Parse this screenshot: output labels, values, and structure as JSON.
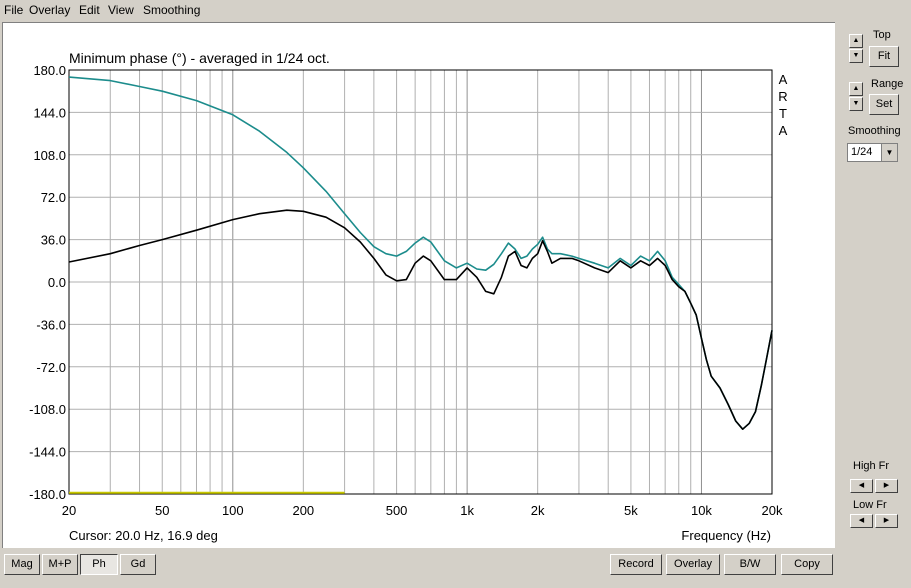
{
  "menu": [
    "File",
    "Overlay",
    "Edit",
    "View",
    "Smoothing"
  ],
  "right_panel": {
    "top_label": "Top",
    "fit_label": "Fit",
    "range_label": "Range",
    "set_label": "Set",
    "smoothing_label": "Smoothing",
    "smoothing_value": "1/24",
    "high_fr_label": "High Fr",
    "low_fr_label": "Low Fr"
  },
  "bottom_buttons": {
    "mag": "Mag",
    "mp": "M+P",
    "ph": "Ph",
    "gd": "Gd",
    "record": "Record",
    "overlay": "Overlay",
    "bw": "B/W",
    "copy": "Copy"
  },
  "colors": {
    "teal": "#1c8c8c",
    "black": "#000000",
    "yellow": "#c8c800",
    "grid": "#b0b0b0"
  },
  "chart_data": {
    "type": "line",
    "title": "Minimum phase (°) - averaged in 1/24 oct.",
    "xlabel": "Frequency (Hz)",
    "ylabel": "",
    "xscale": "log",
    "xlim": [
      20,
      20000
    ],
    "ylim": [
      -180,
      180
    ],
    "yticks": [
      "180.0",
      "144.0",
      "108.0",
      "72.0",
      "36.0",
      "0.0",
      "-36.0",
      "-72.0",
      "-108.0",
      "-144.0",
      "-180.0"
    ],
    "xticks": [
      {
        "v": 20,
        "label": "20"
      },
      {
        "v": 50,
        "label": "50"
      },
      {
        "v": 100,
        "label": "100"
      },
      {
        "v": 200,
        "label": "200"
      },
      {
        "v": 500,
        "label": "500"
      },
      {
        "v": 1000,
        "label": "1k"
      },
      {
        "v": 2000,
        "label": "2k"
      },
      {
        "v": 5000,
        "label": "5k"
      },
      {
        "v": 10000,
        "label": "10k"
      },
      {
        "v": 20000,
        "label": "20k"
      }
    ],
    "watermark": "A R T A",
    "cursor_text": "Cursor: 20.0 Hz, 16.9 deg",
    "series": [
      {
        "color": "#1c8c8c",
        "x": [
          20,
          30,
          40,
          50,
          70,
          100,
          130,
          170,
          200,
          250,
          300,
          350,
          400,
          450,
          500,
          550,
          600,
          650,
          700,
          800,
          900,
          1000,
          1100,
          1200,
          1300,
          1400,
          1500,
          1600,
          1700,
          1800,
          1900,
          2000,
          2100,
          2200,
          2300,
          2500,
          2800,
          3000,
          3500,
          4000,
          4500,
          5000,
          5500,
          6000,
          6500,
          7000,
          7500,
          8000,
          8500,
          9000,
          9500,
          10000,
          10500,
          11000,
          12000,
          13000,
          14000,
          15000,
          16000,
          17000,
          18000,
          19000,
          20000
        ],
        "y": [
          174,
          171,
          166,
          162,
          154,
          142,
          128,
          110,
          97,
          77,
          58,
          42,
          30,
          24,
          22,
          26,
          33,
          38,
          34,
          18,
          12,
          16,
          11,
          10,
          15,
          24,
          33,
          28,
          20,
          22,
          28,
          32,
          38,
          28,
          24,
          24,
          22,
          20,
          16,
          12,
          20,
          14,
          22,
          18,
          26,
          18,
          4,
          -2,
          -8,
          -18,
          -28,
          -48,
          -66,
          -80,
          -90,
          -104,
          -118,
          -125,
          -120,
          -110,
          -88,
          -64,
          -41
        ]
      },
      {
        "color": "#000000",
        "x": [
          20,
          30,
          40,
          50,
          70,
          100,
          130,
          170,
          200,
          250,
          300,
          350,
          400,
          450,
          500,
          550,
          600,
          650,
          700,
          800,
          900,
          1000,
          1100,
          1200,
          1300,
          1400,
          1500,
          1600,
          1700,
          1800,
          1900,
          2000,
          2100,
          2200,
          2300,
          2500,
          2800,
          3000,
          3500,
          4000,
          4500,
          5000,
          5500,
          6000,
          6500,
          7000,
          7500,
          8000,
          8500,
          9000,
          9500,
          10000,
          10500,
          11000,
          12000,
          13000,
          14000,
          15000,
          16000,
          17000,
          18000,
          19000,
          20000
        ],
        "y": [
          17,
          24,
          31,
          36,
          44,
          53,
          58,
          61,
          60,
          55,
          46,
          34,
          20,
          6,
          1,
          2,
          16,
          22,
          18,
          2,
          2,
          12,
          4,
          -8,
          -10,
          4,
          22,
          26,
          14,
          12,
          20,
          24,
          35,
          26,
          16,
          20,
          20,
          18,
          12,
          8,
          18,
          12,
          18,
          14,
          20,
          14,
          2,
          -4,
          -8,
          -18,
          -28,
          -48,
          -66,
          -80,
          -90,
          -104,
          -118,
          -125,
          -120,
          -110,
          -88,
          -64,
          -41
        ]
      },
      {
        "color": "#c8c800",
        "x": [
          20,
          300
        ],
        "y": [
          -179,
          -179
        ]
      }
    ]
  }
}
